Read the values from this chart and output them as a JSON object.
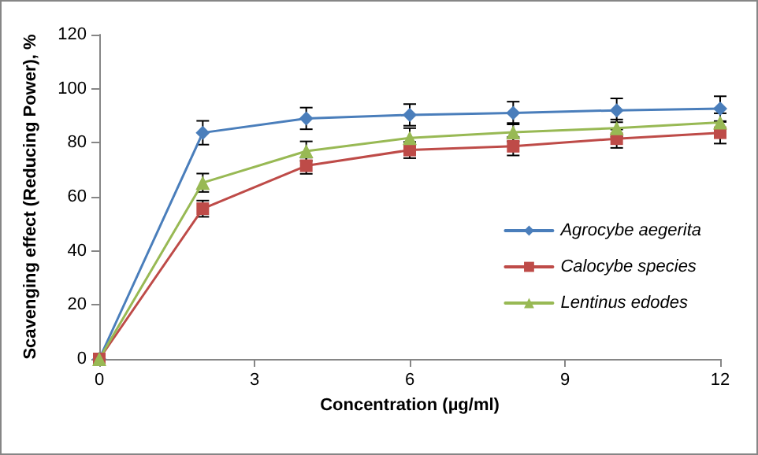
{
  "chart_data": {
    "type": "line",
    "xlabel": "Concentration (µg/ml)",
    "ylabel": "Scavenging effect (Reducing Power), %",
    "x": [
      0,
      2,
      4,
      6,
      8,
      10,
      12
    ],
    "xlim": [
      0,
      12
    ],
    "xticks": [
      0,
      3,
      6,
      9,
      12
    ],
    "ylim": [
      0,
      120
    ],
    "yticks": [
      0,
      20,
      40,
      60,
      80,
      100,
      120
    ],
    "grid": false,
    "legend": "right",
    "series": [
      {
        "name": "Agrocybe aegerita",
        "color": "#4a7ebb",
        "marker": "diamond",
        "values": [
          0,
          83.7,
          89,
          90.3,
          91,
          92,
          92.6
        ],
        "errors": [
          null,
          4.4,
          4,
          4,
          4.2,
          4.4,
          4.6
        ]
      },
      {
        "name": "Calocybe species",
        "color": "#be4b48",
        "marker": "square",
        "values": [
          0,
          55.6,
          71.5,
          77.3,
          78.7,
          81.5,
          83.7
        ],
        "errors": [
          null,
          3,
          3,
          3,
          3.4,
          3.4,
          4
        ]
      },
      {
        "name": "Lentinus edodes",
        "color": "#98b954",
        "marker": "triangle",
        "values": [
          0,
          65.2,
          76.9,
          81.8,
          83.9,
          85.4,
          87.5
        ],
        "errors": [
          null,
          3.4,
          3.6,
          3.6,
          3.4,
          3.2,
          3.4
        ]
      }
    ]
  }
}
